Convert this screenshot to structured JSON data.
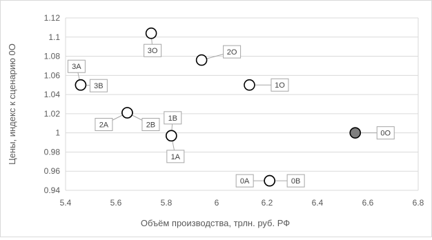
{
  "chart_data": {
    "type": "scatter",
    "title": "",
    "xlabel": "Объём производства, трлн. руб. РФ",
    "ylabel": "Цены, индекс к сценарию 0O",
    "xlim": [
      5.4,
      6.8
    ],
    "ylim": [
      0.94,
      1.12
    ],
    "x_ticks": [
      "5.4",
      "5.6",
      "5.8",
      "6",
      "6.2",
      "6.4",
      "6.6",
      "6.8"
    ],
    "y_ticks": [
      "0.94",
      "0.96",
      "0.98",
      "1",
      "1.02",
      "1.04",
      "1.06",
      "1.08",
      "1.1",
      "1.12"
    ],
    "grid": "horizontal",
    "points": [
      {
        "label": "0O",
        "x": 6.55,
        "y": 1.0,
        "filled": true
      },
      {
        "label": "1O",
        "x": 6.13,
        "y": 1.05
      },
      {
        "label": "2O",
        "x": 5.94,
        "y": 1.076
      },
      {
        "label": "3O",
        "x": 5.74,
        "y": 1.104
      },
      {
        "label": "0A",
        "x": 6.21,
        "y": 0.95
      },
      {
        "label": "0B",
        "x": 6.21,
        "y": 0.95
      },
      {
        "label": "1A",
        "x": 5.82,
        "y": 0.997
      },
      {
        "label": "1B",
        "x": 5.82,
        "y": 0.997
      },
      {
        "label": "2A",
        "x": 5.645,
        "y": 1.021
      },
      {
        "label": "2B",
        "x": 5.645,
        "y": 1.021
      },
      {
        "label": "3A",
        "x": 5.46,
        "y": 1.05
      },
      {
        "label": "3B",
        "x": 5.46,
        "y": 1.05
      }
    ],
    "colors": {
      "marker_stroke": "#000000",
      "marker_fill": "#ffffff",
      "marker_fill_highlight": "#7f7f7f"
    }
  }
}
